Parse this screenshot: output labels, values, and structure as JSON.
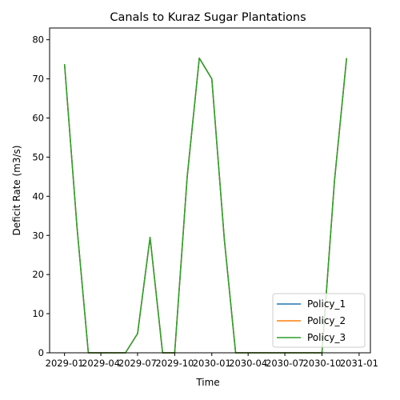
{
  "chart_data": {
    "type": "line",
    "title": "Canals to Kuraz Sugar Plantations",
    "xlabel": "Time",
    "ylabel": "Deficit Rate (m3/s)",
    "xlim": [
      "2028-11-25",
      "2031-01-29"
    ],
    "ylim": [
      0,
      83
    ],
    "x_ticks": [
      "2029-01-01",
      "2029-04-01",
      "2029-07-01",
      "2029-10-01",
      "2030-01-01",
      "2030-04-01",
      "2030-07-01",
      "2030-10-01",
      "2031-01-01"
    ],
    "x_tick_labels": [
      "2029-01",
      "2029-04",
      "2029-07",
      "2029-10",
      "2030-01",
      "2030-04",
      "2030-07",
      "2030-10",
      "2031-01"
    ],
    "y_ticks": [
      0,
      10,
      20,
      30,
      40,
      50,
      60,
      70,
      80
    ],
    "grid": false,
    "legend_position": "lower right",
    "x": [
      "2029-01-01",
      "2029-02-01",
      "2029-03-01",
      "2029-04-01",
      "2029-05-01",
      "2029-06-01",
      "2029-07-01",
      "2029-08-01",
      "2029-09-01",
      "2029-10-01",
      "2029-11-01",
      "2029-12-01",
      "2030-01-01",
      "2030-02-01",
      "2030-03-01",
      "2030-04-01",
      "2030-05-01",
      "2030-06-01",
      "2030-07-01",
      "2030-08-01",
      "2030-09-01",
      "2030-10-01",
      "2030-11-01",
      "2030-12-01"
    ],
    "series": [
      {
        "name": "Policy_1",
        "color": "#1f77b4",
        "values": [
          73.8,
          32.0,
          0,
          0,
          0,
          0,
          4.9,
          29.5,
          0,
          0,
          45.0,
          75.3,
          70.0,
          29.0,
          0,
          0,
          0,
          0,
          0,
          0,
          0,
          0,
          44.0,
          75.3
        ]
      },
      {
        "name": " Policy_2",
        "color": "#ff7f0e",
        "values": [
          73.8,
          32.0,
          0,
          0,
          0,
          0,
          4.9,
          29.5,
          0,
          0,
          45.0,
          75.3,
          70.0,
          29.0,
          0,
          0,
          0,
          0,
          0,
          0,
          0,
          0,
          44.0,
          75.3
        ]
      },
      {
        "name": " Policy_3",
        "color": "#2ca02c",
        "values": [
          73.8,
          32.0,
          0,
          0,
          0,
          0,
          4.9,
          29.5,
          0,
          0,
          45.0,
          75.3,
          70.0,
          29.0,
          0,
          0,
          0,
          0,
          0,
          0,
          0,
          0,
          44.0,
          75.3
        ]
      }
    ]
  }
}
